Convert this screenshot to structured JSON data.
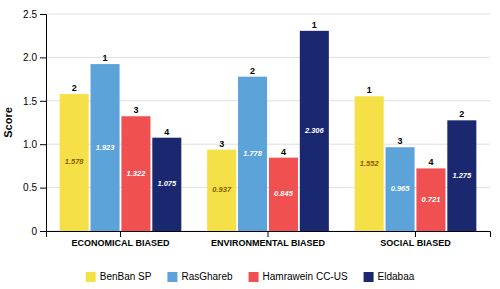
{
  "chart_data": {
    "type": "bar",
    "categories": [
      "ECONOMICAL BIASED",
      "ENVIRONMENTAL BIASED",
      "SOCIAL BIASED"
    ],
    "series": [
      {
        "name": "BenBan SP",
        "color": "#F5E048",
        "values": [
          1.578,
          0.937,
          1.552
        ],
        "ranks": [
          2,
          3,
          1
        ]
      },
      {
        "name": "RasGhareb",
        "color": "#5BA3D9",
        "values": [
          1.923,
          1.778,
          0.965
        ],
        "ranks": [
          1,
          2,
          3
        ]
      },
      {
        "name": "Hamrawein CC-US",
        "color": "#F05050",
        "values": [
          1.322,
          0.845,
          0.721
        ],
        "ranks": [
          3,
          4,
          4
        ]
      },
      {
        "name": "Eldabaa",
        "color": "#1A2870",
        "values": [
          1.075,
          2.306,
          1.275
        ],
        "ranks": [
          4,
          1,
          2
        ]
      }
    ],
    "ylabel": "Score",
    "ylim": [
      0,
      2.5
    ],
    "yticks": [
      0,
      0.5,
      {
        "value": 1,
        "label": "1.0"
      },
      1.5,
      {
        "value": 2,
        "label": "2.0"
      },
      2.5
    ],
    "grid": true,
    "legend": "bottom",
    "data_labels": true
  }
}
